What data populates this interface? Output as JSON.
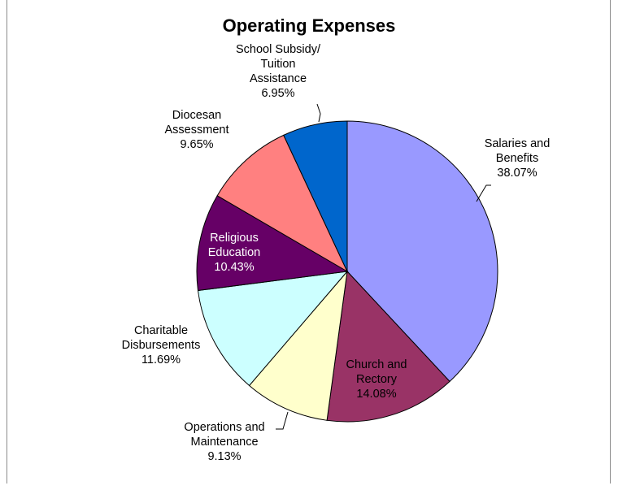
{
  "chart_data": {
    "type": "pie",
    "title": "Operating Expenses",
    "slices": [
      {
        "label_lines": [
          "Salaries and",
          "Benefits",
          "38.07%"
        ],
        "value": 38.07,
        "color": "#9999ff"
      },
      {
        "label_lines": [
          "Church and",
          "Rectory",
          "14.08%"
        ],
        "value": 14.08,
        "color": "#993366"
      },
      {
        "label_lines": [
          "Operations and",
          "Maintenance",
          "9.13%"
        ],
        "value": 9.13,
        "color": "#ffffcc"
      },
      {
        "label_lines": [
          "Charitable",
          "Disbursements",
          "11.69%"
        ],
        "value": 11.69,
        "color": "#ccffff"
      },
      {
        "label_lines": [
          "Religious",
          "Education",
          "10.43%"
        ],
        "value": 10.43,
        "color": "#660066"
      },
      {
        "label_lines": [
          "Diocesan",
          "Assessment",
          "9.65%"
        ],
        "value": 9.65,
        "color": "#ff8080"
      },
      {
        "label_lines": [
          "School Subsidy/",
          "Tuition",
          "Assistance",
          "6.95%"
        ],
        "value": 6.95,
        "color": "#0066cc"
      }
    ]
  }
}
